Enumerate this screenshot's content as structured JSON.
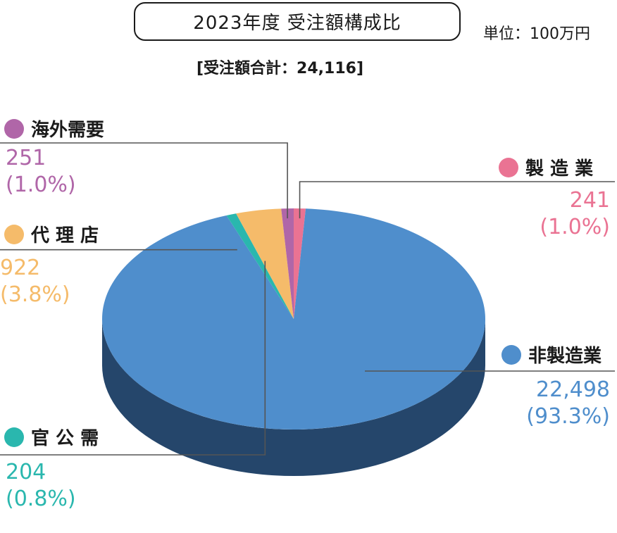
{
  "title": "2023年度 受注額構成比",
  "unit": "単位：100万円",
  "total_text": "[受注額合計：24,116]",
  "chart_data": {
    "type": "pie",
    "title": "2023年度 受注額構成比",
    "unit": "単位：100万円",
    "total": 24116,
    "slices": [
      {
        "name": "非製造業",
        "display_name": "非製造業",
        "value": 22498,
        "value_text": "22,498",
        "percent_text": "(93.3%)",
        "percent": 93.3,
        "color": "#4f8ecc",
        "side_color": "#25466b"
      },
      {
        "name": "官公需",
        "display_name": "官 公 需",
        "value": 204,
        "value_text": "204",
        "percent_text": "(0.8%)",
        "percent": 0.8,
        "color": "#2ab7ae",
        "side_color": "#1b7a74"
      },
      {
        "name": "代理店",
        "display_name": "代 理 店",
        "value": 922,
        "value_text": "922",
        "percent_text": "(3.8%)",
        "percent": 3.8,
        "color": "#f5bb6a",
        "side_color": "#b0843f"
      },
      {
        "name": "海外需要",
        "display_name": "海外需要",
        "value": 251,
        "value_text": "251",
        "percent_text": "(1.0%)",
        "percent": 1.0,
        "color": "#b066a8",
        "side_color": "#7a4574"
      },
      {
        "name": "製造業",
        "display_name": "製 造 業",
        "value": 241,
        "value_text": "241",
        "percent_text": "(1.0%)",
        "percent": 1.0,
        "color": "#ea7393",
        "side_color": "#a14c63"
      }
    ]
  }
}
